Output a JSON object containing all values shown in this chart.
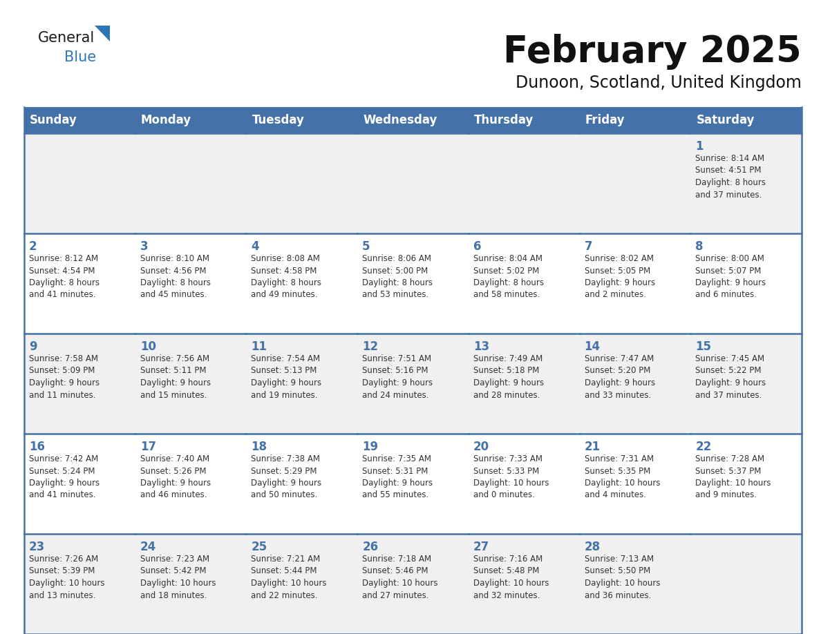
{
  "title": "February 2025",
  "subtitle": "Dunoon, Scotland, United Kingdom",
  "days_of_week": [
    "Sunday",
    "Monday",
    "Tuesday",
    "Wednesday",
    "Thursday",
    "Friday",
    "Saturday"
  ],
  "header_bg": "#4472a8",
  "header_text_color": "#ffffff",
  "cell_bg_odd": "#f0f0f0",
  "cell_bg_even": "#ffffff",
  "cell_border_color": "#4472a8",
  "day_number_color": "#4472a8",
  "text_color": "#333333",
  "background_color": "#ffffff",
  "weeks": [
    [
      {
        "day": null,
        "sunrise": null,
        "sunset": null,
        "daylight": null
      },
      {
        "day": null,
        "sunrise": null,
        "sunset": null,
        "daylight": null
      },
      {
        "day": null,
        "sunrise": null,
        "sunset": null,
        "daylight": null
      },
      {
        "day": null,
        "sunrise": null,
        "sunset": null,
        "daylight": null
      },
      {
        "day": null,
        "sunrise": null,
        "sunset": null,
        "daylight": null
      },
      {
        "day": null,
        "sunrise": null,
        "sunset": null,
        "daylight": null
      },
      {
        "day": 1,
        "sunrise": "8:14 AM",
        "sunset": "4:51 PM",
        "daylight": "8 hours\nand 37 minutes."
      }
    ],
    [
      {
        "day": 2,
        "sunrise": "8:12 AM",
        "sunset": "4:54 PM",
        "daylight": "8 hours\nand 41 minutes."
      },
      {
        "day": 3,
        "sunrise": "8:10 AM",
        "sunset": "4:56 PM",
        "daylight": "8 hours\nand 45 minutes."
      },
      {
        "day": 4,
        "sunrise": "8:08 AM",
        "sunset": "4:58 PM",
        "daylight": "8 hours\nand 49 minutes."
      },
      {
        "day": 5,
        "sunrise": "8:06 AM",
        "sunset": "5:00 PM",
        "daylight": "8 hours\nand 53 minutes."
      },
      {
        "day": 6,
        "sunrise": "8:04 AM",
        "sunset": "5:02 PM",
        "daylight": "8 hours\nand 58 minutes."
      },
      {
        "day": 7,
        "sunrise": "8:02 AM",
        "sunset": "5:05 PM",
        "daylight": "9 hours\nand 2 minutes."
      },
      {
        "day": 8,
        "sunrise": "8:00 AM",
        "sunset": "5:07 PM",
        "daylight": "9 hours\nand 6 minutes."
      }
    ],
    [
      {
        "day": 9,
        "sunrise": "7:58 AM",
        "sunset": "5:09 PM",
        "daylight": "9 hours\nand 11 minutes."
      },
      {
        "day": 10,
        "sunrise": "7:56 AM",
        "sunset": "5:11 PM",
        "daylight": "9 hours\nand 15 minutes."
      },
      {
        "day": 11,
        "sunrise": "7:54 AM",
        "sunset": "5:13 PM",
        "daylight": "9 hours\nand 19 minutes."
      },
      {
        "day": 12,
        "sunrise": "7:51 AM",
        "sunset": "5:16 PM",
        "daylight": "9 hours\nand 24 minutes."
      },
      {
        "day": 13,
        "sunrise": "7:49 AM",
        "sunset": "5:18 PM",
        "daylight": "9 hours\nand 28 minutes."
      },
      {
        "day": 14,
        "sunrise": "7:47 AM",
        "sunset": "5:20 PM",
        "daylight": "9 hours\nand 33 minutes."
      },
      {
        "day": 15,
        "sunrise": "7:45 AM",
        "sunset": "5:22 PM",
        "daylight": "9 hours\nand 37 minutes."
      }
    ],
    [
      {
        "day": 16,
        "sunrise": "7:42 AM",
        "sunset": "5:24 PM",
        "daylight": "9 hours\nand 41 minutes."
      },
      {
        "day": 17,
        "sunrise": "7:40 AM",
        "sunset": "5:26 PM",
        "daylight": "9 hours\nand 46 minutes."
      },
      {
        "day": 18,
        "sunrise": "7:38 AM",
        "sunset": "5:29 PM",
        "daylight": "9 hours\nand 50 minutes."
      },
      {
        "day": 19,
        "sunrise": "7:35 AM",
        "sunset": "5:31 PM",
        "daylight": "9 hours\nand 55 minutes."
      },
      {
        "day": 20,
        "sunrise": "7:33 AM",
        "sunset": "5:33 PM",
        "daylight": "10 hours\nand 0 minutes."
      },
      {
        "day": 21,
        "sunrise": "7:31 AM",
        "sunset": "5:35 PM",
        "daylight": "10 hours\nand 4 minutes."
      },
      {
        "day": 22,
        "sunrise": "7:28 AM",
        "sunset": "5:37 PM",
        "daylight": "10 hours\nand 9 minutes."
      }
    ],
    [
      {
        "day": 23,
        "sunrise": "7:26 AM",
        "sunset": "5:39 PM",
        "daylight": "10 hours\nand 13 minutes."
      },
      {
        "day": 24,
        "sunrise": "7:23 AM",
        "sunset": "5:42 PM",
        "daylight": "10 hours\nand 18 minutes."
      },
      {
        "day": 25,
        "sunrise": "7:21 AM",
        "sunset": "5:44 PM",
        "daylight": "10 hours\nand 22 minutes."
      },
      {
        "day": 26,
        "sunrise": "7:18 AM",
        "sunset": "5:46 PM",
        "daylight": "10 hours\nand 27 minutes."
      },
      {
        "day": 27,
        "sunrise": "7:16 AM",
        "sunset": "5:48 PM",
        "daylight": "10 hours\nand 32 minutes."
      },
      {
        "day": 28,
        "sunrise": "7:13 AM",
        "sunset": "5:50 PM",
        "daylight": "10 hours\nand 36 minutes."
      },
      {
        "day": null,
        "sunrise": null,
        "sunset": null,
        "daylight": null
      }
    ]
  ],
  "title_fontsize": 38,
  "subtitle_fontsize": 17,
  "header_fontsize": 12,
  "day_number_fontsize": 12,
  "cell_text_fontsize": 8.5
}
